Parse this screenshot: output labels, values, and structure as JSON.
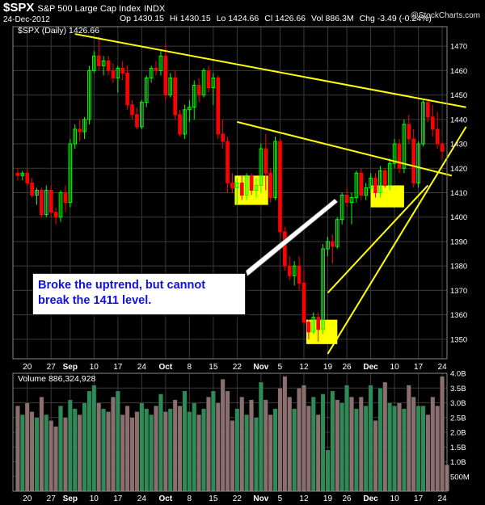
{
  "header": {
    "symbol": "$SPX",
    "name": "S&P 500 Large Cap Index",
    "exchange": "INDX",
    "date": "24-Dec-2012",
    "open": "Op 1430.15",
    "high": "Hi 1430.15",
    "low": "Lo 1424.66",
    "close": "Cl 1426.66",
    "volume": "Vol 886.3M",
    "change": "Chg -3.49 (-0.24%)",
    "watermark": "@StockCharts.com"
  },
  "price_panel": {
    "legend": "$SPX (Daily) 1426.66"
  },
  "volume_panel": {
    "legend": "Volume 886,324,928"
  },
  "annotation": {
    "line1": "Broke the uptrend, but cannot",
    "line2": "break the 1411 level."
  },
  "colors": {
    "up": "#00ff00",
    "down": "#ff0000",
    "trendline": "#ffff00",
    "highlight": "#ffff00",
    "vol_up": "#2e8b57",
    "vol_down": "#8b6f6f",
    "grid": "#3a3a3a"
  },
  "chart_data": [
    {
      "type": "candlestick",
      "title": "$SPX (Daily) 1426.66",
      "ylim": [
        1342,
        1478
      ],
      "y_ticks": [
        1350,
        1360,
        1370,
        1380,
        1390,
        1400,
        1410,
        1420,
        1430,
        1440,
        1450,
        1460,
        1470
      ],
      "x_tick_labels": [
        "20",
        "27",
        "Sep",
        "10",
        "17",
        "24",
        "Oct",
        "8",
        "15",
        "22",
        "Nov",
        "5",
        "12",
        "19",
        "26",
        "Dec",
        "10",
        "17",
        "24"
      ],
      "x_tick_positions": [
        2,
        7,
        11,
        16,
        21,
        26,
        31,
        36,
        41,
        46,
        51,
        55,
        60,
        65,
        69,
        74,
        79,
        84,
        89
      ],
      "candles": [
        {
          "o": 1418,
          "h": 1420,
          "l": 1415,
          "c": 1417
        },
        {
          "o": 1417,
          "h": 1419,
          "l": 1415,
          "c": 1418
        },
        {
          "o": 1418,
          "h": 1420,
          "l": 1413,
          "c": 1414
        },
        {
          "o": 1414,
          "h": 1416,
          "l": 1408,
          "c": 1409
        },
        {
          "o": 1409,
          "h": 1412,
          "l": 1405,
          "c": 1411
        },
        {
          "o": 1411,
          "h": 1412,
          "l": 1400,
          "c": 1401
        },
        {
          "o": 1401,
          "h": 1413,
          "l": 1400,
          "c": 1411
        },
        {
          "o": 1411,
          "h": 1413,
          "l": 1400,
          "c": 1402
        },
        {
          "o": 1402,
          "h": 1404,
          "l": 1397,
          "c": 1400
        },
        {
          "o": 1400,
          "h": 1411,
          "l": 1398,
          "c": 1410
        },
        {
          "o": 1410,
          "h": 1413,
          "l": 1402,
          "c": 1406
        },
        {
          "o": 1406,
          "h": 1432,
          "l": 1404,
          "c": 1430
        },
        {
          "o": 1430,
          "h": 1438,
          "l": 1428,
          "c": 1436
        },
        {
          "o": 1436,
          "h": 1440,
          "l": 1431,
          "c": 1435
        },
        {
          "o": 1435,
          "h": 1441,
          "l": 1432,
          "c": 1440
        },
        {
          "o": 1440,
          "h": 1462,
          "l": 1438,
          "c": 1460
        },
        {
          "o": 1460,
          "h": 1468,
          "l": 1459,
          "c": 1466
        },
        {
          "o": 1466,
          "h": 1474,
          "l": 1460,
          "c": 1462
        },
        {
          "o": 1462,
          "h": 1466,
          "l": 1458,
          "c": 1464
        },
        {
          "o": 1464,
          "h": 1466,
          "l": 1458,
          "c": 1460
        },
        {
          "o": 1460,
          "h": 1463,
          "l": 1455,
          "c": 1457
        },
        {
          "o": 1457,
          "h": 1462,
          "l": 1451,
          "c": 1461
        },
        {
          "o": 1461,
          "h": 1464,
          "l": 1456,
          "c": 1459
        },
        {
          "o": 1459,
          "h": 1462,
          "l": 1444,
          "c": 1446
        },
        {
          "o": 1446,
          "h": 1448,
          "l": 1440,
          "c": 1442
        },
        {
          "o": 1442,
          "h": 1445,
          "l": 1436,
          "c": 1437
        },
        {
          "o": 1437,
          "h": 1448,
          "l": 1436,
          "c": 1447
        },
        {
          "o": 1447,
          "h": 1458,
          "l": 1445,
          "c": 1457
        },
        {
          "o": 1457,
          "h": 1462,
          "l": 1455,
          "c": 1461
        },
        {
          "o": 1461,
          "h": 1464,
          "l": 1458,
          "c": 1460
        },
        {
          "o": 1460,
          "h": 1468,
          "l": 1458,
          "c": 1466
        },
        {
          "o": 1466,
          "h": 1471,
          "l": 1448,
          "c": 1450
        },
        {
          "o": 1450,
          "h": 1459,
          "l": 1449,
          "c": 1457
        },
        {
          "o": 1457,
          "h": 1460,
          "l": 1440,
          "c": 1442
        },
        {
          "o": 1442,
          "h": 1444,
          "l": 1433,
          "c": 1434
        },
        {
          "o": 1434,
          "h": 1446,
          "l": 1432,
          "c": 1444
        },
        {
          "o": 1444,
          "h": 1448,
          "l": 1439,
          "c": 1445
        },
        {
          "o": 1445,
          "h": 1456,
          "l": 1440,
          "c": 1454
        },
        {
          "o": 1454,
          "h": 1457,
          "l": 1447,
          "c": 1450
        },
        {
          "o": 1450,
          "h": 1461,
          "l": 1449,
          "c": 1460
        },
        {
          "o": 1460,
          "h": 1462,
          "l": 1451,
          "c": 1453
        },
        {
          "o": 1453,
          "h": 1459,
          "l": 1446,
          "c": 1457
        },
        {
          "o": 1457,
          "h": 1458,
          "l": 1432,
          "c": 1434
        },
        {
          "o": 1434,
          "h": 1440,
          "l": 1428,
          "c": 1431
        },
        {
          "o": 1431,
          "h": 1433,
          "l": 1410,
          "c": 1414
        },
        {
          "o": 1414,
          "h": 1418,
          "l": 1410,
          "c": 1412
        },
        {
          "o": 1412,
          "h": 1416,
          "l": 1405,
          "c": 1414
        },
        {
          "o": 1414,
          "h": 1417,
          "l": 1407,
          "c": 1409
        },
        {
          "o": 1409,
          "h": 1418,
          "l": 1407,
          "c": 1417
        },
        {
          "o": 1417,
          "h": 1418,
          "l": 1409,
          "c": 1411
        },
        {
          "o": 1411,
          "h": 1416,
          "l": 1408,
          "c": 1413
        },
        {
          "o": 1413,
          "h": 1430,
          "l": 1410,
          "c": 1428
        },
        {
          "o": 1428,
          "h": 1434,
          "l": 1411,
          "c": 1418
        },
        {
          "o": 1418,
          "h": 1420,
          "l": 1406,
          "c": 1408
        },
        {
          "o": 1408,
          "h": 1433,
          "l": 1407,
          "c": 1431
        },
        {
          "o": 1431,
          "h": 1432,
          "l": 1392,
          "c": 1394
        },
        {
          "o": 1394,
          "h": 1396,
          "l": 1378,
          "c": 1380
        },
        {
          "o": 1380,
          "h": 1384,
          "l": 1374,
          "c": 1376
        },
        {
          "o": 1376,
          "h": 1382,
          "l": 1372,
          "c": 1380
        },
        {
          "o": 1380,
          "h": 1384,
          "l": 1370,
          "c": 1373
        },
        {
          "o": 1373,
          "h": 1378,
          "l": 1356,
          "c": 1357
        },
        {
          "o": 1357,
          "h": 1358,
          "l": 1350,
          "c": 1353
        },
        {
          "o": 1353,
          "h": 1361,
          "l": 1352,
          "c": 1359
        },
        {
          "o": 1359,
          "h": 1361,
          "l": 1349,
          "c": 1354
        },
        {
          "o": 1354,
          "h": 1389,
          "l": 1352,
          "c": 1387
        },
        {
          "o": 1387,
          "h": 1392,
          "l": 1384,
          "c": 1390
        },
        {
          "o": 1390,
          "h": 1393,
          "l": 1381,
          "c": 1388
        },
        {
          "o": 1388,
          "h": 1400,
          "l": 1387,
          "c": 1399
        },
        {
          "o": 1399,
          "h": 1410,
          "l": 1397,
          "c": 1409
        },
        {
          "o": 1409,
          "h": 1412,
          "l": 1404,
          "c": 1406
        },
        {
          "o": 1406,
          "h": 1410,
          "l": 1397,
          "c": 1408
        },
        {
          "o": 1408,
          "h": 1419,
          "l": 1406,
          "c": 1418
        },
        {
          "o": 1418,
          "h": 1420,
          "l": 1407,
          "c": 1409
        },
        {
          "o": 1409,
          "h": 1414,
          "l": 1407,
          "c": 1412
        },
        {
          "o": 1412,
          "h": 1418,
          "l": 1410,
          "c": 1416
        },
        {
          "o": 1416,
          "h": 1418,
          "l": 1408,
          "c": 1410
        },
        {
          "o": 1410,
          "h": 1421,
          "l": 1408,
          "c": 1419
        },
        {
          "o": 1419,
          "h": 1420,
          "l": 1412,
          "c": 1413
        },
        {
          "o": 1413,
          "h": 1424,
          "l": 1411,
          "c": 1422
        },
        {
          "o": 1422,
          "h": 1432,
          "l": 1420,
          "c": 1430
        },
        {
          "o": 1430,
          "h": 1432,
          "l": 1418,
          "c": 1420
        },
        {
          "o": 1420,
          "h": 1440,
          "l": 1418,
          "c": 1438
        },
        {
          "o": 1438,
          "h": 1442,
          "l": 1430,
          "c": 1432
        },
        {
          "o": 1432,
          "h": 1436,
          "l": 1412,
          "c": 1414
        },
        {
          "o": 1414,
          "h": 1431,
          "l": 1412,
          "c": 1430
        },
        {
          "o": 1430,
          "h": 1448,
          "l": 1429,
          "c": 1447
        },
        {
          "o": 1447,
          "h": 1448,
          "l": 1439,
          "c": 1441
        },
        {
          "o": 1441,
          "h": 1446,
          "l": 1433,
          "c": 1436
        },
        {
          "o": 1436,
          "h": 1443,
          "l": 1428,
          "c": 1430
        },
        {
          "o": 1430,
          "h": 1431,
          "l": 1424,
          "c": 1427
        }
      ],
      "trendlines": [
        {
          "from": [
            12,
            1475
          ],
          "to": [
            94,
            1445
          ]
        },
        {
          "from": [
            46,
            1439
          ],
          "to": [
            91,
            1417
          ]
        },
        {
          "from": [
            65,
            1369
          ],
          "to": [
            86,
            1413
          ]
        },
        {
          "from": [
            65,
            1344
          ],
          "to": [
            94,
            1437
          ]
        }
      ],
      "highlight_boxes": [
        {
          "x": [
            45.5,
            52.5
          ],
          "y": [
            1405,
            1417
          ]
        },
        {
          "x": [
            60.5,
            67
          ],
          "y": [
            1348,
            1358
          ]
        },
        {
          "x": [
            74,
            81
          ],
          "y": [
            1404,
            1413
          ]
        }
      ]
    },
    {
      "type": "bar",
      "title": "Volume 886,324,928",
      "ylim": [
        0,
        4.0
      ],
      "y_tick_labels": [
        "500M",
        "1.0B",
        "1.5B",
        "2.0B",
        "2.5B",
        "3.0B",
        "3.5B",
        "4.0B"
      ],
      "y_tick_values": [
        0.5,
        1.0,
        1.5,
        2.0,
        2.5,
        3.0,
        3.5,
        4.0
      ],
      "values": [
        2.9,
        2.6,
        3.0,
        2.7,
        2.5,
        3.2,
        2.6,
        2.4,
        2.2,
        2.9,
        2.5,
        3.1,
        2.8,
        2.6,
        3.0,
        3.4,
        3.6,
        3.0,
        2.8,
        2.7,
        3.2,
        3.4,
        2.6,
        2.9,
        2.5,
        2.7,
        3.0,
        2.8,
        2.6,
        2.9,
        3.3,
        2.7,
        2.8,
        3.1,
        2.9,
        3.4,
        2.7,
        3.0,
        2.6,
        2.8,
        3.2,
        3.4,
        3.0,
        3.8,
        3.4,
        2.4,
        2.8,
        3.2,
        2.6,
        3.1,
        2.5,
        3.7,
        3.1,
        2.6,
        2.8,
        3.5,
        3.9,
        3.2,
        2.8,
        3.5,
        3.6,
        2.9,
        3.2,
        2.6,
        3.3,
        1.4,
        3.4,
        3.1,
        3.0,
        3.6,
        3.2,
        2.8,
        3.2,
        2.9,
        3.6,
        2.4,
        3.5,
        3.7,
        3.0,
        2.9,
        3.0,
        2.8,
        3.6,
        3.2,
        2.9,
        2.9,
        2.6,
        3.2,
        2.9,
        3.9,
        0.9
      ],
      "up": [
        false,
        true,
        false,
        false,
        true,
        false,
        true,
        false,
        false,
        true,
        false,
        true,
        true,
        false,
        true,
        true,
        true,
        false,
        true,
        false,
        false,
        true,
        false,
        false,
        false,
        false,
        true,
        true,
        true,
        false,
        true,
        false,
        true,
        false,
        false,
        true,
        true,
        true,
        false,
        true,
        false,
        true,
        false,
        false,
        false,
        false,
        true,
        false,
        true,
        false,
        true,
        true,
        false,
        false,
        true,
        false,
        false,
        false,
        true,
        false,
        false,
        false,
        true,
        false,
        true,
        true,
        true,
        false,
        true,
        true,
        false,
        true,
        false,
        true,
        true,
        false,
        true,
        false,
        true,
        true,
        false,
        true,
        false,
        false,
        true,
        true,
        false,
        false,
        false,
        false,
        false
      ]
    }
  ]
}
